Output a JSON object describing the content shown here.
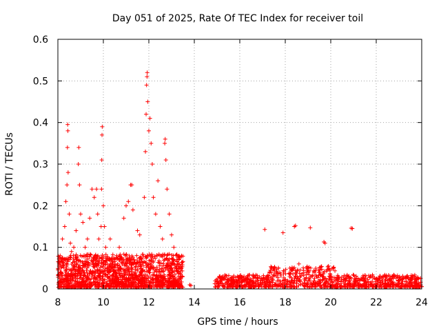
{
  "chart_data": {
    "type": "scatter",
    "title": "Day 051 of 2025, Rate Of TEC Index for receiver toil",
    "xlabel": "GPS time / hours",
    "ylabel": "ROTI / TECUs",
    "xlim": [
      8,
      24
    ],
    "ylim": [
      0,
      0.6
    ],
    "x_ticks": [
      8,
      10,
      12,
      14,
      16,
      18,
      20,
      22,
      24
    ],
    "x_tick_labels": [
      "8",
      "10",
      "12",
      "14",
      "16",
      "18",
      "20",
      "22",
      "24"
    ],
    "y_ticks": [
      0,
      0.1,
      0.2,
      0.3,
      0.4,
      0.5,
      0.6
    ],
    "y_tick_labels": [
      "0",
      "0.1",
      "0.2",
      "0.3",
      "0.4",
      "0.5",
      "0.6"
    ],
    "grid": true,
    "marker": "+",
    "series": [
      {
        "name": "ROTI",
        "color": "#ff0000",
        "dense_band": {
          "description_hours": "dense scatter of low ROTI values",
          "segments": [
            {
              "x_range": [
                8.0,
                13.5
              ],
              "typical_max": 0.08
            },
            {
              "x_range": [
                14.9,
                24.0
              ],
              "typical_max": 0.03
            }
          ]
        },
        "points": [
          [
            8.05,
            0.06
          ],
          [
            8.1,
            0.08
          ],
          [
            8.2,
            0.12
          ],
          [
            8.3,
            0.15
          ],
          [
            8.35,
            0.21
          ],
          [
            8.4,
            0.25
          ],
          [
            8.45,
            0.28
          ],
          [
            8.42,
            0.34
          ],
          [
            8.43,
            0.395
          ],
          [
            8.44,
            0.38
          ],
          [
            8.5,
            0.18
          ],
          [
            8.55,
            0.11
          ],
          [
            8.6,
            0.09
          ],
          [
            8.7,
            0.1
          ],
          [
            8.8,
            0.14
          ],
          [
            8.9,
            0.3
          ],
          [
            8.92,
            0.34
          ],
          [
            8.95,
            0.25
          ],
          [
            9.0,
            0.18
          ],
          [
            9.1,
            0.16
          ],
          [
            9.2,
            0.1
          ],
          [
            9.3,
            0.12
          ],
          [
            9.4,
            0.17
          ],
          [
            9.5,
            0.24
          ],
          [
            9.6,
            0.22
          ],
          [
            9.7,
            0.24
          ],
          [
            9.75,
            0.18
          ],
          [
            9.8,
            0.12
          ],
          [
            9.9,
            0.15
          ],
          [
            9.92,
            0.24
          ],
          [
            9.93,
            0.31
          ],
          [
            9.94,
            0.37
          ],
          [
            9.95,
            0.39
          ],
          [
            10.0,
            0.2
          ],
          [
            10.05,
            0.15
          ],
          [
            10.1,
            0.1
          ],
          [
            10.3,
            0.12
          ],
          [
            10.5,
            0.07
          ],
          [
            10.7,
            0.1
          ],
          [
            10.9,
            0.17
          ],
          [
            11.0,
            0.2
          ],
          [
            11.1,
            0.21
          ],
          [
            11.2,
            0.25
          ],
          [
            11.25,
            0.25
          ],
          [
            11.3,
            0.19
          ],
          [
            11.5,
            0.14
          ],
          [
            11.6,
            0.13
          ],
          [
            11.8,
            0.22
          ],
          [
            11.85,
            0.33
          ],
          [
            11.88,
            0.42
          ],
          [
            11.9,
            0.49
          ],
          [
            11.92,
            0.51
          ],
          [
            11.93,
            0.52
          ],
          [
            11.95,
            0.45
          ],
          [
            12.0,
            0.38
          ],
          [
            12.05,
            0.41
          ],
          [
            12.1,
            0.35
          ],
          [
            12.15,
            0.3
          ],
          [
            12.2,
            0.22
          ],
          [
            12.3,
            0.18
          ],
          [
            12.4,
            0.26
          ],
          [
            12.5,
            0.15
          ],
          [
            12.6,
            0.12
          ],
          [
            12.7,
            0.35
          ],
          [
            12.72,
            0.36
          ],
          [
            12.75,
            0.31
          ],
          [
            12.8,
            0.24
          ],
          [
            12.9,
            0.18
          ],
          [
            13.0,
            0.13
          ],
          [
            13.1,
            0.1
          ],
          [
            13.2,
            0.08
          ],
          [
            13.3,
            0.05
          ],
          [
            13.4,
            0.03
          ],
          [
            13.8,
            0.01
          ],
          [
            13.85,
            0.008
          ],
          [
            15.1,
            0.03
          ],
          [
            15.2,
            0.028
          ],
          [
            15.3,
            0.025
          ],
          [
            15.5,
            0.02
          ],
          [
            16.2,
            0.02
          ],
          [
            16.8,
            0.025
          ],
          [
            17.1,
            0.143
          ],
          [
            17.2,
            0.03
          ],
          [
            17.6,
            0.04
          ],
          [
            17.9,
            0.135
          ],
          [
            18.2,
            0.05
          ],
          [
            18.4,
            0.15
          ],
          [
            18.45,
            0.152
          ],
          [
            18.6,
            0.06
          ],
          [
            19.0,
            0.04
          ],
          [
            19.1,
            0.147
          ],
          [
            19.5,
            0.04
          ],
          [
            19.7,
            0.113
          ],
          [
            19.75,
            0.11
          ],
          [
            19.9,
            0.055
          ],
          [
            20.3,
            0.025
          ],
          [
            20.9,
            0.146
          ],
          [
            20.95,
            0.145
          ],
          [
            21.5,
            0.02
          ],
          [
            22.6,
            0.025
          ],
          [
            23.0,
            0.015
          ],
          [
            23.8,
            0.01
          ]
        ]
      }
    ]
  }
}
